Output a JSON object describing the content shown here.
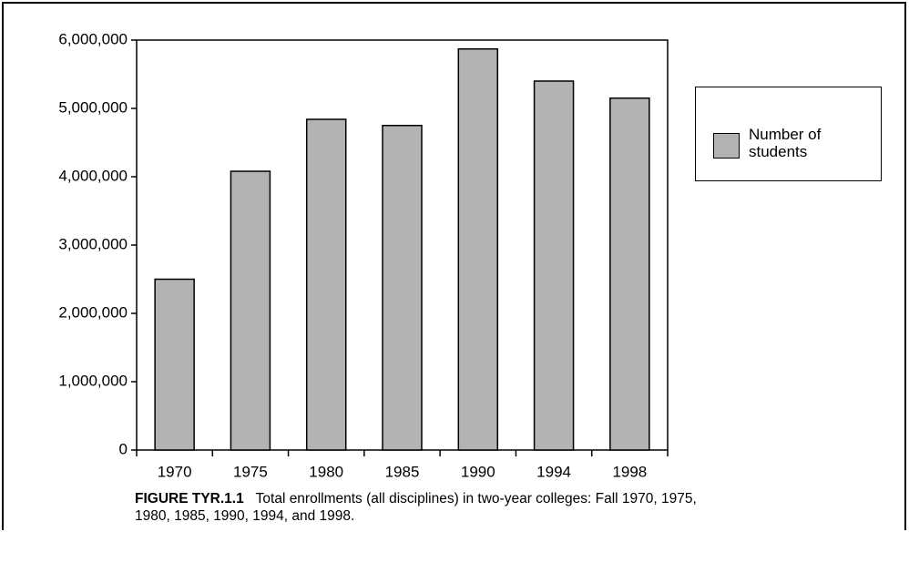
{
  "chart_data": {
    "type": "bar",
    "categories": [
      "1970",
      "1975",
      "1980",
      "1985",
      "1990",
      "1994",
      "1998"
    ],
    "series": [
      {
        "name": "Number of students",
        "color": "#b3b3b3",
        "values": [
          2500000,
          4080000,
          4840000,
          4750000,
          5870000,
          5400000,
          5150000
        ]
      }
    ],
    "ylim": [
      0,
      6000000
    ],
    "yticks": [
      0,
      {
        "value": 1000000,
        "label": "1,000,000"
      },
      {
        "value": 2000000,
        "label": "2,000,000"
      },
      {
        "value": 3000000,
        "label": "3,000,000"
      },
      {
        "value": 4000000,
        "label": "4,000,000"
      },
      {
        "value": 5000000,
        "label": "5,000,000"
      },
      {
        "value": 6000000,
        "label": "6,000,000"
      }
    ],
    "grid": false,
    "legend": "right",
    "caption_label": "FIGURE TYR.1.1",
    "caption_lines": [
      "Total enrollments (all disciplines) in two-year colleges:  Fall 1970, 1975,",
      "1980, 1985, 1990, 1994, and 1998."
    ]
  }
}
